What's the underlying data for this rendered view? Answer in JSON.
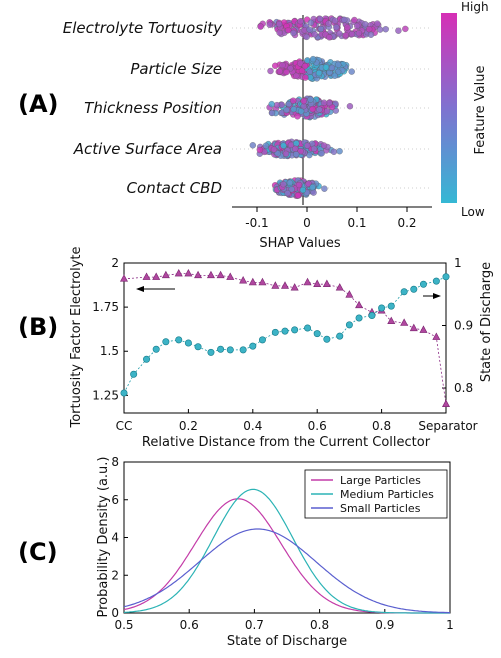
{
  "panels": {
    "a": {
      "label": "(A)"
    },
    "b": {
      "label": "(B)"
    },
    "c": {
      "label": "(C)"
    }
  },
  "chart_data": [
    {
      "type": "scatter",
      "subtype": "beeswarm",
      "features": [
        "Electrolyte Tortuosity",
        "Particle Size",
        "Thickness Position",
        "Active Surface Area",
        "Contact CBD"
      ],
      "xlabel": "SHAP Values",
      "xlim": [
        -0.15,
        0.25
      ],
      "xticks": [
        -0.1,
        0,
        0.1,
        0.2
      ],
      "xtick_labels": [
        "-0.1",
        "0",
        "0.1",
        "0.2"
      ],
      "colorbar": {
        "title": "Feature Value",
        "high": "High",
        "low": "Low",
        "high_color": "#d62fb5",
        "low_color": "#35b8d4"
      },
      "feature_ranges": [
        {
          "feature": "Electrolyte Tortuosity",
          "min": -0.14,
          "max": 0.22,
          "spread": 0.32
        },
        {
          "feature": "Particle Size",
          "min": -0.08,
          "max": 0.11,
          "spread": 0.3
        },
        {
          "feature": "Thickness Position",
          "min": -0.1,
          "max": 0.1,
          "spread": 0.28
        },
        {
          "feature": "Active Surface Area",
          "min": -0.13,
          "max": 0.07,
          "spread": 0.2
        },
        {
          "feature": "Contact CBD",
          "min": -0.08,
          "max": 0.04,
          "spread": 0.22
        }
      ]
    },
    {
      "type": "line",
      "xlabel": "Relative Distance from the Current Collector",
      "ylabel_left": "Tortuosity Factor Electrolyte",
      "ylabel_right": "State of Discharge",
      "xlim": [
        0,
        1
      ],
      "xtick_values": [
        0,
        0.2,
        0.4,
        0.6,
        0.8,
        1
      ],
      "xtick_labels": [
        "CC",
        "0.2",
        "0.4",
        "0.6",
        "0.8",
        "Separator"
      ],
      "ylim_left": [
        1.15,
        2.0
      ],
      "yticks_left": [
        1.25,
        1.5,
        1.75,
        2
      ],
      "ytick_labels_left": [
        "1.25",
        "1.5",
        "1.75",
        "2"
      ],
      "ylim_right": [
        0.76,
        1.0
      ],
      "yticks_right": [
        0.8,
        0.9,
        1
      ],
      "ytick_labels_right": [
        "0.8",
        "0.9",
        "1"
      ],
      "series": [
        {
          "name": "Tortuosity Factor Electrolyte",
          "axis": "left",
          "color": "#8a2a85",
          "marker": "triangle",
          "x": [
            0,
            0.07,
            0.1,
            0.13,
            0.17,
            0.2,
            0.23,
            0.27,
            0.3,
            0.33,
            0.37,
            0.4,
            0.43,
            0.47,
            0.5,
            0.53,
            0.57,
            0.6,
            0.63,
            0.67,
            0.7,
            0.73,
            0.77,
            0.8,
            0.83,
            0.87,
            0.9,
            0.93,
            0.97,
            1.0
          ],
          "y": [
            1.91,
            1.92,
            1.92,
            1.93,
            1.94,
            1.94,
            1.93,
            1.93,
            1.93,
            1.92,
            1.9,
            1.89,
            1.89,
            1.87,
            1.87,
            1.86,
            1.89,
            1.88,
            1.88,
            1.86,
            1.82,
            1.76,
            1.72,
            1.73,
            1.67,
            1.66,
            1.63,
            1.62,
            1.58,
            1.2
          ]
        },
        {
          "name": "State of Discharge",
          "axis": "right",
          "color": "#1b9aa8",
          "marker": "circle",
          "x": [
            0,
            0.03,
            0.07,
            0.1,
            0.13,
            0.17,
            0.2,
            0.23,
            0.27,
            0.3,
            0.33,
            0.37,
            0.4,
            0.43,
            0.47,
            0.5,
            0.53,
            0.57,
            0.6,
            0.63,
            0.67,
            0.7,
            0.73,
            0.77,
            0.8,
            0.83,
            0.87,
            0.9,
            0.93,
            0.97,
            1.0
          ],
          "y": [
            0.792,
            0.822,
            0.846,
            0.862,
            0.874,
            0.877,
            0.872,
            0.866,
            0.857,
            0.862,
            0.861,
            0.861,
            0.867,
            0.877,
            0.889,
            0.891,
            0.893,
            0.896,
            0.887,
            0.878,
            0.883,
            0.901,
            0.912,
            0.916,
            0.928,
            0.931,
            0.954,
            0.958,
            0.966,
            0.971,
            0.978
          ]
        }
      ]
    },
    {
      "type": "line",
      "xlabel": "State of Discharge",
      "ylabel": "Probability Density (a.u.)",
      "xlim": [
        0.5,
        1
      ],
      "xticks": [
        0.5,
        0.6,
        0.7,
        0.8,
        0.9,
        1
      ],
      "xtick_labels": [
        "0.5",
        "0.6",
        "0.7",
        "0.8",
        "0.9",
        "1"
      ],
      "ylim": [
        0,
        8
      ],
      "yticks": [
        0,
        2,
        4,
        6,
        8
      ],
      "ytick_labels": [
        "0",
        "2",
        "4",
        "6",
        "8"
      ],
      "legend_position": "top-right",
      "series": [
        {
          "name": "Large Particles",
          "color": "#c43ca8",
          "mean": 0.675,
          "std": 0.066,
          "peak": 6.05
        },
        {
          "name": "Medium Particles",
          "color": "#2bb3b5",
          "mean": 0.698,
          "std": 0.061,
          "peak": 6.55
        },
        {
          "name": "Small Particles",
          "color": "#5a5fcf",
          "mean": 0.705,
          "std": 0.09,
          "peak": 4.45
        }
      ]
    }
  ]
}
